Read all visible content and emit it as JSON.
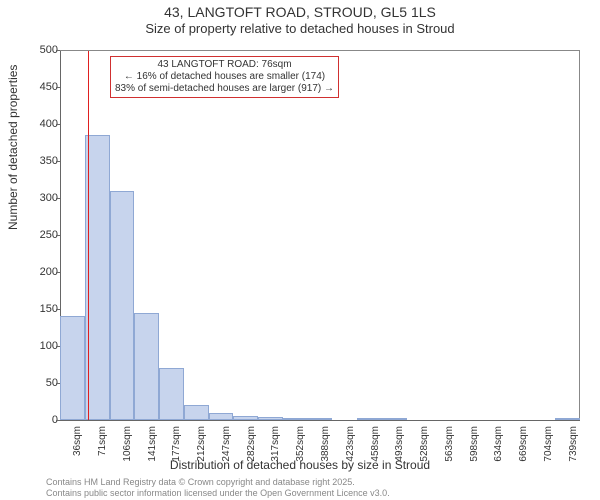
{
  "title": {
    "main": "43, LANGTOFT ROAD, STROUD, GL5 1LS",
    "sub": "Size of property relative to detached houses in Stroud"
  },
  "chart": {
    "type": "histogram",
    "y_axis_label": "Number of detached properties",
    "x_axis_label": "Distribution of detached houses by size in Stroud",
    "ylim": [
      0,
      500
    ],
    "ytick_step": 50,
    "y_ticks": [
      0,
      50,
      100,
      150,
      200,
      250,
      300,
      350,
      400,
      450,
      500
    ],
    "x_labels": [
      "36sqm",
      "71sqm",
      "106sqm",
      "141sqm",
      "177sqm",
      "212sqm",
      "247sqm",
      "282sqm",
      "317sqm",
      "352sqm",
      "388sqm",
      "423sqm",
      "458sqm",
      "493sqm",
      "528sqm",
      "563sqm",
      "598sqm",
      "634sqm",
      "669sqm",
      "704sqm",
      "739sqm"
    ],
    "values": [
      140,
      385,
      310,
      145,
      70,
      20,
      10,
      6,
      4,
      3,
      2,
      0,
      1,
      1,
      0,
      0,
      0,
      0,
      0,
      0,
      1
    ],
    "bar_color": "#c7d4ed",
    "bar_border_color": "#8fa8d4",
    "background_color": "#ffffff",
    "axis_color": "#666666",
    "marker": {
      "color": "#e02020",
      "bin_index": 1,
      "fraction_in_bin": 0.14
    },
    "annotation": {
      "line1": "43 LANGTOFT ROAD: 76sqm",
      "line2": "← 16% of detached houses are smaller (174)",
      "line3": "83% of semi-detached houses are larger (917) →",
      "border_color": "#d03030"
    }
  },
  "footer": {
    "line1": "Contains HM Land Registry data © Crown copyright and database right 2025.",
    "line2": "Contains public sector information licensed under the Open Government Licence v3.0."
  }
}
